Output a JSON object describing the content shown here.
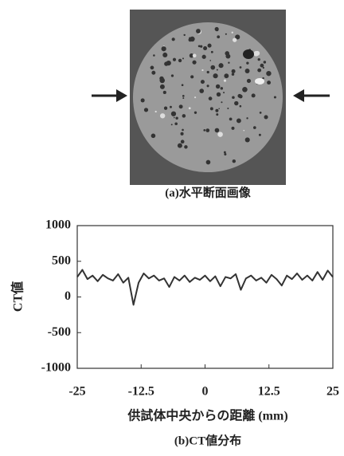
{
  "image_caption": "(a)水平断面画像",
  "chart_data": {
    "type": "line",
    "caption": "(b)CT値分布",
    "xlabel": "供試体中央からの距離 (mm)",
    "ylabel": "CT値",
    "x": [
      -25,
      -24,
      -23,
      -22,
      -21,
      -20,
      -19,
      -18,
      -17,
      -16,
      -15,
      -14,
      -13,
      -12,
      -11,
      -10,
      -9,
      -8,
      -7,
      -6,
      -5,
      -4,
      -3,
      -2,
      -1,
      0,
      1,
      2,
      3,
      4,
      5,
      6,
      7,
      8,
      9,
      10,
      11,
      12,
      13,
      14,
      15,
      16,
      17,
      18,
      19,
      20,
      21,
      22,
      23,
      24,
      25
    ],
    "series": [
      {
        "color": "#333333",
        "values": [
          280,
          380,
          250,
          300,
          220,
          310,
          260,
          230,
          320,
          200,
          270,
          -110,
          200,
          330,
          260,
          300,
          230,
          260,
          140,
          280,
          230,
          300,
          210,
          270,
          240,
          300,
          220,
          290,
          150,
          280,
          260,
          320,
          100,
          260,
          300,
          230,
          270,
          200,
          310,
          250,
          160,
          300,
          250,
          330,
          240,
          300,
          230,
          350,
          240,
          370,
          280
        ]
      }
    ],
    "xlim": [
      -25,
      25
    ],
    "xticks": [
      -25,
      -12.5,
      0,
      12.5,
      25
    ],
    "ylim": [
      -1000,
      1000
    ],
    "yticks": [
      -1000,
      -500,
      0,
      500,
      1000
    ]
  }
}
